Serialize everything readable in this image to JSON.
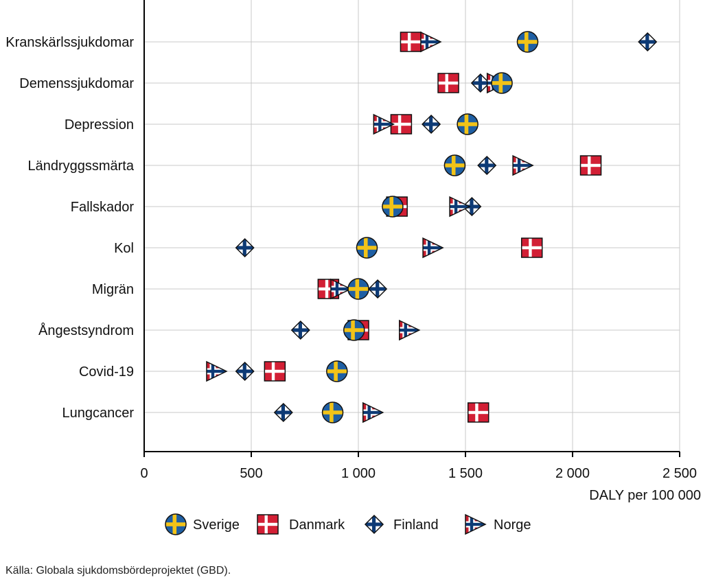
{
  "colors": {
    "sweden_blue": "#1f5fa3",
    "sweden_yellow": "#f2c318",
    "denmark_red": "#d21f35",
    "finland_blue": "#0d3a75",
    "norway_red": "#c81e2f",
    "norway_blue": "#0d3a75",
    "grid": "#c8c8c8"
  },
  "legend": [
    {
      "name": "Sverige",
      "icon": "sweden-flag-circle-icon"
    },
    {
      "name": "Danmark",
      "icon": "denmark-flag-square-icon"
    },
    {
      "name": "Finland",
      "icon": "finland-flag-diamond-icon"
    },
    {
      "name": "Norge",
      "icon": "norway-flag-triangle-icon"
    }
  ],
  "source": "Källa: Globala sjukdomsbördeprojektet (GBD).",
  "chart_data": {
    "type": "scatter",
    "title": "",
    "xlabel": "DALY per 100 000",
    "ylabel": "",
    "xlim": [
      0,
      2500
    ],
    "xticks": [
      0,
      500,
      1000,
      1500,
      2000,
      2500
    ],
    "xtick_labels": [
      "0",
      "500",
      "1 000",
      "1 500",
      "2 000",
      "2 500"
    ],
    "grid": true,
    "legend_position": "bottom",
    "categories": [
      "Kranskärlssjukdomar",
      "Demenssjukdomar",
      "Depression",
      "Ländryggssmärta",
      "Fallskador",
      "Kol",
      "Migrän",
      "Ångestsyndrom",
      "Covid-19",
      "Lungcancer"
    ],
    "series": [
      {
        "name": "Danmark",
        "values": [
          1245,
          1420,
          1200,
          2085,
          1180,
          1810,
          860,
          1000,
          610,
          1560
        ]
      },
      {
        "name": "Finland",
        "values": [
          2350,
          1570,
          1340,
          1600,
          1530,
          470,
          1090,
          730,
          470,
          650
        ]
      },
      {
        "name": "Norge",
        "values": [
          1330,
          1640,
          1110,
          1760,
          1465,
          1340,
          910,
          1230,
          330,
          1060
        ]
      },
      {
        "name": "Sverige",
        "values": [
          1790,
          1670,
          1510,
          1450,
          1160,
          1040,
          1000,
          980,
          900,
          880
        ]
      }
    ]
  }
}
